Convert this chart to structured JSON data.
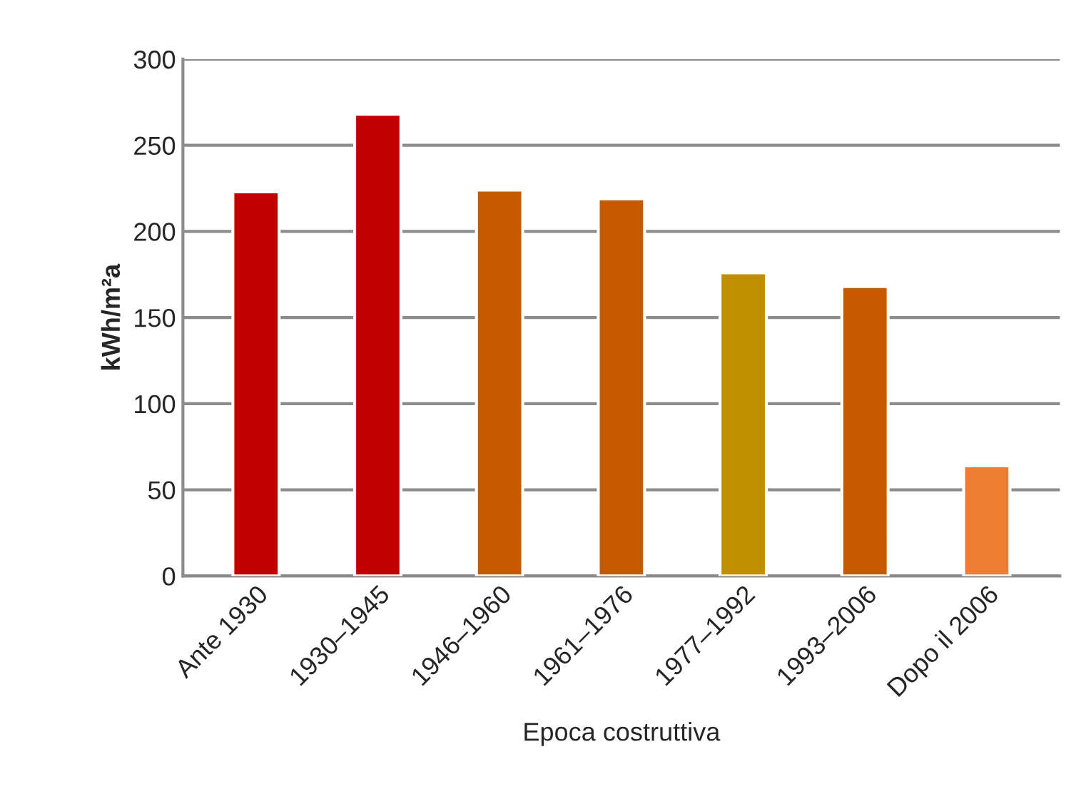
{
  "chart_data": {
    "type": "bar",
    "xlabel": "Epoca costruttiva",
    "ylabel": "kWh/m²a",
    "categories": [
      "Ante 1930",
      "1930–1945",
      "1946–1960",
      "1961–1976",
      "1977–1992",
      "1993–2006",
      "Dopo il 2006"
    ],
    "values": [
      223,
      268,
      224,
      219,
      176,
      168,
      64
    ],
    "colors": [
      "#c00000",
      "#c00000",
      "#c55a00",
      "#c55a00",
      "#bf8f00",
      "#c55a00",
      "#ed7d31"
    ],
    "ylim": [
      0,
      300
    ],
    "yticks": [
      0,
      50,
      100,
      150,
      200,
      250,
      300
    ],
    "grid": "y"
  }
}
